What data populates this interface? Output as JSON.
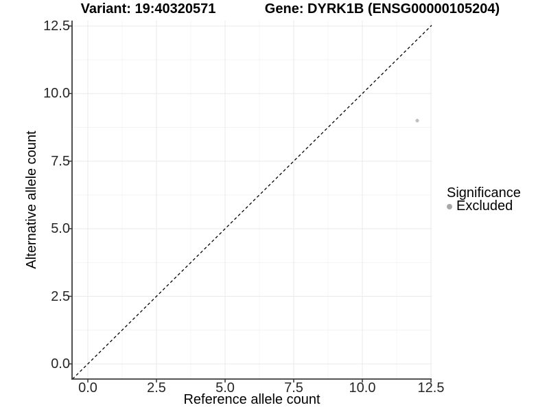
{
  "chart_data": {
    "type": "scatter",
    "titles": {
      "variant": "Variant: 19:40320571",
      "gene": "Gene: DYRK1B (ENSG00000105204)"
    },
    "xlabel": "Reference allele count",
    "ylabel": "Alternative allele count",
    "xlim": [
      -0.575,
      12.525
    ],
    "ylim": [
      -0.56,
      12.7
    ],
    "x_tick_values": [
      0,
      2.5,
      5,
      7.5,
      10,
      12.5
    ],
    "x_tick_labels": [
      "0.0",
      "2.5",
      "5.0",
      "7.5",
      "10.0",
      "12.5"
    ],
    "y_tick_values": [
      0,
      2.5,
      5,
      7.5,
      10,
      12.5
    ],
    "y_tick_labels": [
      "0.0",
      "2.5",
      "5.0",
      "7.5",
      "10.0",
      "12.5"
    ],
    "x_minor_gridlines": [
      1.25,
      3.75,
      6.25,
      8.75,
      11.25
    ],
    "y_minor_gridlines": [
      1.25,
      3.75,
      6.25,
      8.75,
      11.25
    ],
    "grid": true,
    "reference_line": {
      "kind": "identity",
      "equation": "y = x",
      "style": "dashed",
      "color": "#000000"
    },
    "series": [
      {
        "name": "Excluded",
        "color": "#c0c0c0",
        "point_radius": 2.6,
        "points": [
          {
            "x": 12,
            "y": 9
          }
        ]
      }
    ],
    "legend": {
      "title": "Significance",
      "position": "right",
      "items": [
        {
          "label": "Excluded",
          "color": "#a8a8a8"
        }
      ]
    },
    "colors": {
      "background": "#ffffff",
      "grid_major": "#e9e9e9",
      "grid_minor": "#f4f4f4",
      "axis": "#3c3c3c",
      "tick_text": "#262626"
    }
  }
}
